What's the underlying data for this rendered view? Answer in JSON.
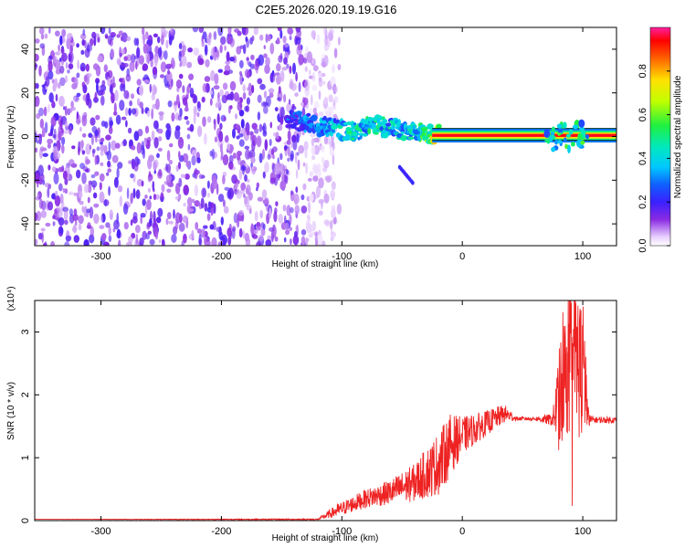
{
  "title": "C2E5.2026.020.19.19.G16",
  "chart_data": [
    {
      "type": "heatmap",
      "name": "spectrogram",
      "xlabel": "Height of straight line (km)",
      "ylabel": "Frequency (Hz)",
      "xlim": [
        -355,
        128
      ],
      "ylim": [
        -50,
        50
      ],
      "x_ticks": [
        -300,
        -200,
        -100,
        0,
        100
      ],
      "x_tick_labels": [
        "-300",
        "-200",
        "-100",
        "0",
        "100"
      ],
      "y_ticks": [
        40,
        20,
        0,
        -20,
        -40
      ],
      "y_tick_labels": [
        "40",
        "20",
        "0",
        "-20",
        "-40"
      ],
      "noise_region": {
        "x_range": [
          -355,
          -120
        ],
        "y_range": [
          -50,
          50
        ],
        "amplitude": 0.1
      },
      "signal_track": [
        {
          "x": -145,
          "y": 8,
          "amp": 0.3
        },
        {
          "x": -120,
          "y": 5,
          "amp": 0.35
        },
        {
          "x": -100,
          "y": 3,
          "amp": 0.45
        },
        {
          "x": -90,
          "y": 2,
          "amp": 0.5
        },
        {
          "x": -75,
          "y": 6,
          "amp": 0.5
        },
        {
          "x": -55,
          "y": 3,
          "amp": 0.45
        },
        {
          "x": -40,
          "y": 2,
          "amp": 0.5
        },
        {
          "x": -25,
          "y": 1,
          "amp": 0.7
        },
        {
          "x": 0,
          "y": 0.5,
          "amp": 0.9
        },
        {
          "x": 50,
          "y": 0.5,
          "amp": 0.9
        },
        {
          "x": 100,
          "y": 0.5,
          "amp": 0.9
        }
      ],
      "colorbar": {
        "label": "Normalized spectral amplitude",
        "ticks": [
          0.0,
          0.2,
          0.4,
          0.6,
          0.8
        ],
        "tick_labels": [
          "0.0",
          "0.2",
          "0.4",
          "0.6",
          "0.8"
        ],
        "range": [
          0,
          1
        ]
      }
    },
    {
      "type": "line",
      "name": "snr",
      "xlabel": "Height of straight line (km)",
      "ylabel": "SNR (10 * v/v)",
      "y_multiplier": "(x10⁴)",
      "xlim": [
        -355,
        128
      ],
      "ylim": [
        0,
        3.5
      ],
      "x_ticks": [
        -300,
        -200,
        -100,
        0,
        100
      ],
      "x_tick_labels": [
        "-300",
        "-200",
        "-100",
        "0",
        "100"
      ],
      "y_ticks": [
        0,
        1,
        2,
        3
      ],
      "y_tick_labels": [
        "0",
        "1",
        "2",
        "3"
      ],
      "color": "#ee2222",
      "envelope": {
        "x": [
          -355,
          -120,
          -105,
          -80,
          -60,
          -40,
          -20,
          -10,
          0,
          20,
          35,
          45,
          60,
          75,
          80,
          90,
          100,
          105,
          110,
          128
        ],
        "y": [
          0.02,
          0.02,
          0.15,
          0.35,
          0.45,
          0.6,
          0.9,
          1.2,
          1.35,
          1.55,
          1.7,
          1.62,
          1.62,
          1.6,
          1.9,
          2.7,
          2.4,
          1.6,
          1.6,
          1.6
        ],
        "spread": [
          0,
          0.01,
          0.1,
          0.15,
          0.2,
          0.3,
          0.5,
          0.5,
          0.3,
          0.2,
          0.15,
          0.03,
          0.03,
          0.1,
          0.8,
          1.3,
          1.2,
          0.1,
          0.05,
          0.05
        ]
      }
    }
  ]
}
